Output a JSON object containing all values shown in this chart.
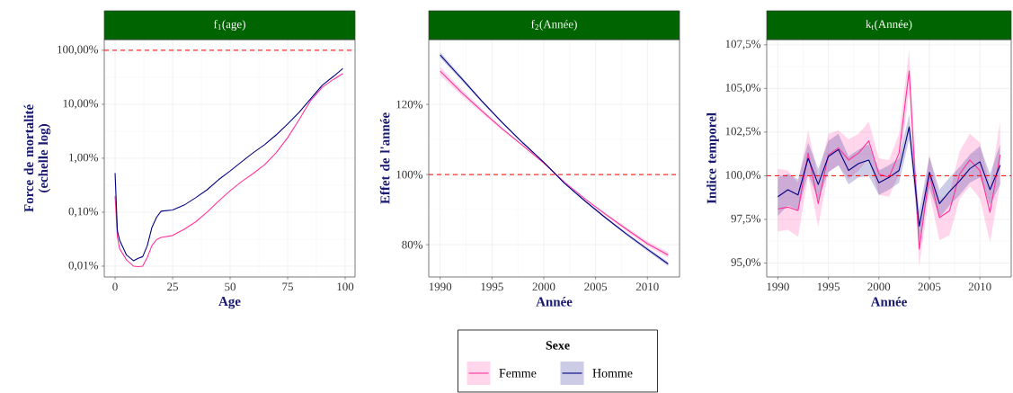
{
  "chart_data": [
    {
      "type": "line",
      "title": "f$_{1}$(age)",
      "xlabel": "Age",
      "ylabel": "Force de mortalité (echelle log)",
      "log": "y",
      "grid": true,
      "legend": "bottom",
      "legend_title": "Sexe",
      "x": [
        0,
        1,
        2,
        5,
        8,
        10,
        12,
        14,
        16,
        18,
        20,
        25,
        30,
        35,
        40,
        45,
        50,
        55,
        60,
        65,
        70,
        75,
        80,
        85,
        90,
        95,
        99
      ],
      "xlim": [
        -4.7,
        104.3
      ],
      "ylim": [
        0.0063,
        158
      ],
      "xticks": [
        0,
        25,
        50,
        75,
        100
      ],
      "yticks": [
        {
          "value": 0.01,
          "label": "0,01%"
        },
        {
          "value": 0.1,
          "label": "0,10%"
        },
        {
          "value": 1,
          "label": "1,00%"
        },
        {
          "value": 10,
          "label": "10,00%"
        },
        {
          "value": 100,
          "label": "100,00%"
        }
      ],
      "ref_lines": [
        {
          "axis": "y",
          "value": 100,
          "color": "#ff0000",
          "line_style": "dashed"
        }
      ],
      "series": [
        {
          "name": "Femme",
          "color": "#ff3399",
          "values": [
            0.2,
            0.035,
            0.021,
            0.013,
            0.01,
            0.0098,
            0.01,
            0.0145,
            0.024,
            0.031,
            0.034,
            0.037,
            0.048,
            0.066,
            0.1,
            0.16,
            0.25,
            0.37,
            0.52,
            0.76,
            1.26,
            2.4,
            5.2,
            11.7,
            20.6,
            29,
            37
          ]
        },
        {
          "name": "Homme",
          "color": "#000080",
          "values": [
            0.53,
            0.045,
            0.03,
            0.016,
            0.0126,
            0.014,
            0.015,
            0.024,
            0.052,
            0.08,
            0.104,
            0.11,
            0.135,
            0.185,
            0.26,
            0.4,
            0.58,
            0.86,
            1.26,
            1.78,
            2.7,
            4.3,
            7.1,
            12.6,
            22.4,
            33,
            46
          ]
        }
      ]
    },
    {
      "type": "line",
      "title": "f$_{2}$(Année)",
      "xlabel": "Année",
      "ylabel": "Effet de l'année",
      "grid": true,
      "x": [
        1990,
        1992,
        1994,
        1996,
        1998,
        2000,
        2002,
        2004,
        2006,
        2008,
        2010,
        2012
      ],
      "xlim": [
        1988.9,
        2013.1
      ],
      "ylim": [
        70.8,
        138.5
      ],
      "xticks": [
        1990,
        1995,
        2000,
        2005,
        2010
      ],
      "yticks": [
        {
          "value": 80,
          "label": "80%"
        },
        {
          "value": 100,
          "label": "100%"
        },
        {
          "value": 120,
          "label": "120%"
        }
      ],
      "ref_lines": [
        {
          "axis": "y",
          "value": 100,
          "color": "#ff0000",
          "line_style": "dashed"
        }
      ],
      "series": [
        {
          "color": "#ff3399",
          "values": [
            129.5,
            123.6,
            118.2,
            113.0,
            108.2,
            103.3,
            97.8,
            93.0,
            88.6,
            84.4,
            80.3,
            77.1
          ],
          "lower": [
            128.3,
            122.7,
            117.6,
            112.6,
            108.0,
            103.2,
            97.7,
            92.8,
            88.2,
            83.9,
            79.6,
            76.3
          ],
          "upper": [
            130.7,
            124.5,
            118.8,
            113.4,
            108.4,
            103.4,
            97.9,
            93.2,
            89.0,
            84.9,
            81.0,
            77.9
          ]
        },
        {
          "color": "#000080",
          "values": [
            134.1,
            127.6,
            121.0,
            114.8,
            109.0,
            103.5,
            97.5,
            92.4,
            87.6,
            83.0,
            78.7,
            74.5
          ],
          "lower": [
            133.3,
            127.0,
            120.6,
            114.5,
            108.8,
            103.4,
            97.4,
            92.2,
            87.3,
            82.6,
            78.2,
            73.9
          ],
          "upper": [
            134.9,
            128.2,
            121.4,
            115.1,
            109.2,
            103.6,
            97.6,
            92.6,
            87.9,
            83.4,
            79.2,
            75.1
          ]
        }
      ]
    },
    {
      "type": "line",
      "title": "k$_{t}$(Année)",
      "xlabel": "Année",
      "ylabel": "Indice temporel",
      "grid": true,
      "x": [
        1990,
        1991,
        1992,
        1993,
        1994,
        1995,
        1996,
        1997,
        1998,
        1999,
        2000,
        2001,
        2002,
        2003,
        2004,
        2005,
        2006,
        2007,
        2008,
        2009,
        2010,
        2011,
        2012
      ],
      "xlim": [
        1988.9,
        2013.1
      ],
      "ylim": [
        94.2,
        107.8
      ],
      "xticks": [
        1990,
        1995,
        2000,
        2005,
        2010
      ],
      "yticks": [
        {
          "value": 95,
          "label": "95,0%"
        },
        {
          "value": 97.5,
          "label": "97,5%"
        },
        {
          "value": 100,
          "label": "100,0%"
        },
        {
          "value": 102.5,
          "label": "102,5%"
        },
        {
          "value": 105,
          "label": "105,0%"
        },
        {
          "value": 107.5,
          "label": "107,5%"
        }
      ],
      "ref_lines": [
        {
          "axis": "y",
          "value": 100,
          "color": "#ff0000",
          "line_style": "dashed"
        }
      ],
      "series": [
        {
          "color": "#ff3399",
          "values": [
            98.1,
            98.2,
            98.0,
            101.3,
            98.4,
            101.2,
            101.6,
            100.9,
            101.3,
            102.0,
            100.1,
            99.9,
            101.3,
            106.0,
            95.8,
            100.1,
            97.6,
            98.0,
            100.1,
            100.9,
            100.3,
            97.9,
            101.2
          ],
          "lower": [
            96.8,
            96.9,
            96.5,
            100.0,
            97.1,
            100.2,
            100.6,
            99.8,
            100.3,
            101.0,
            98.9,
            98.8,
            100.1,
            104.9,
            94.8,
            99.0,
            96.3,
            96.6,
            98.7,
            99.4,
            98.7,
            96.2,
            99.5
          ],
          "upper": [
            100.4,
            100.3,
            99.6,
            102.6,
            99.9,
            102.4,
            102.6,
            102.1,
            102.4,
            103.1,
            101.0,
            100.9,
            102.4,
            107.2,
            96.9,
            101.2,
            98.6,
            99.0,
            101.4,
            102.4,
            101.9,
            99.4,
            103.1
          ]
        },
        {
          "color": "#000080",
          "values": [
            98.8,
            99.2,
            98.9,
            101.0,
            99.5,
            101.1,
            101.5,
            100.3,
            100.7,
            100.9,
            99.6,
            99.9,
            100.3,
            102.8,
            97.1,
            100.2,
            98.4,
            99.1,
            99.7,
            100.4,
            100.8,
            99.2,
            100.6
          ],
          "lower": [
            97.7,
            98.3,
            98.0,
            100.1,
            98.6,
            100.2,
            100.6,
            99.5,
            99.9,
            100.0,
            98.9,
            99.2,
            99.6,
            102.1,
            96.2,
            99.3,
            97.6,
            98.3,
            98.9,
            99.6,
            99.9,
            98.3,
            99.5
          ],
          "upper": [
            99.9,
            100.1,
            99.8,
            101.9,
            100.4,
            102.0,
            102.4,
            101.1,
            101.5,
            101.8,
            100.3,
            100.6,
            101.0,
            103.5,
            98.0,
            101.1,
            99.2,
            99.9,
            100.5,
            101.2,
            101.7,
            100.1,
            101.8
          ]
        }
      ]
    }
  ]
}
